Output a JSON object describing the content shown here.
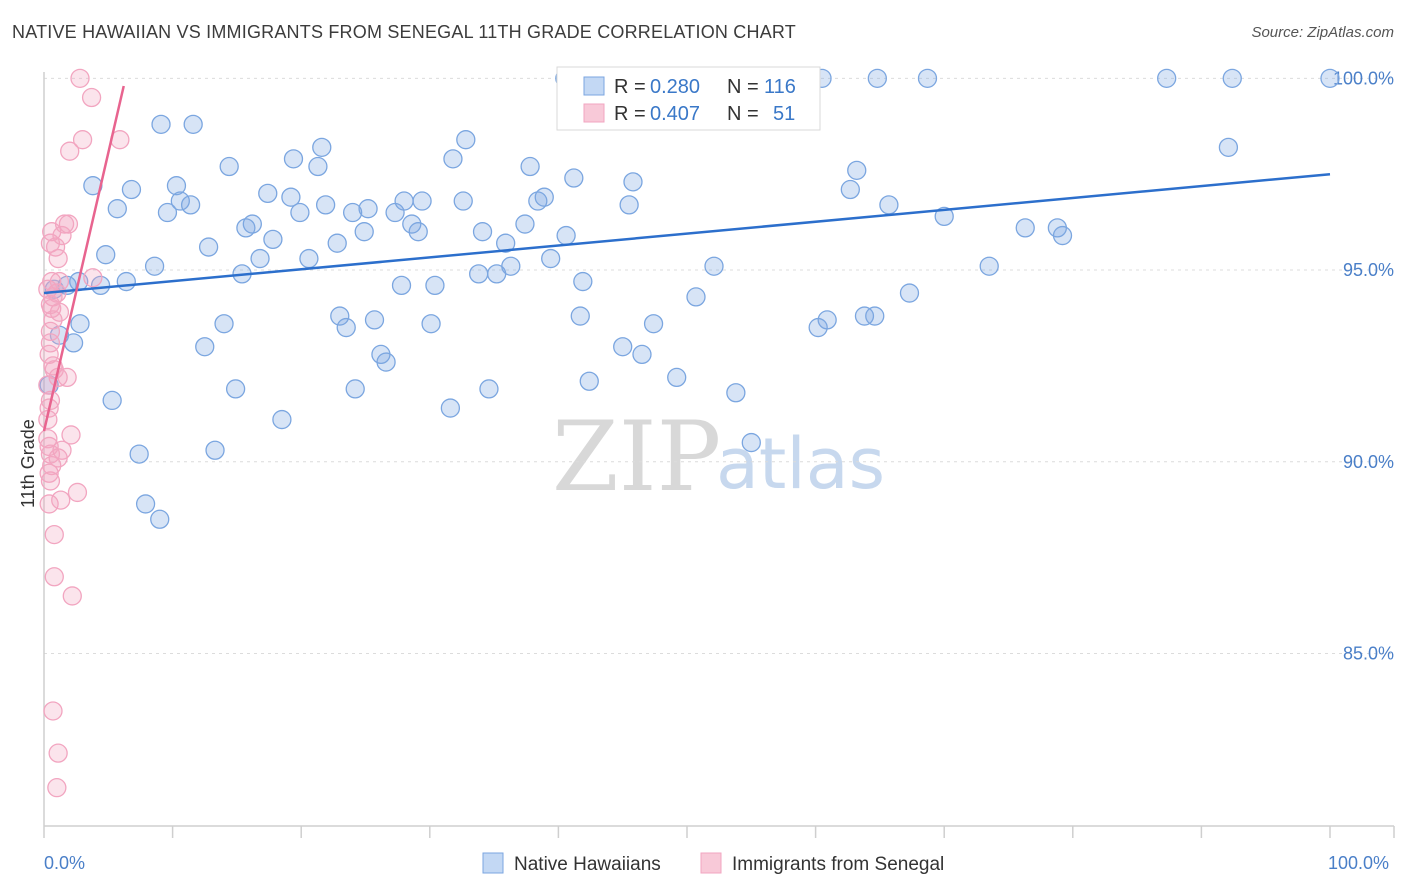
{
  "title": "NATIVE HAWAIIAN VS IMMIGRANTS FROM SENEGAL 11TH GRADE CORRELATION CHART",
  "source": "Source: ZipAtlas.com",
  "watermark": {
    "part1": "ZIP",
    "part2": "atlas"
  },
  "chart_data": {
    "type": "scatter",
    "xlabel": "",
    "ylabel": "11th Grade",
    "xlim": [
      0,
      100
    ],
    "ylim": [
      80.5,
      101
    ],
    "x_tick_labels": [
      "0.0%",
      "100.0%"
    ],
    "y_ticks": [
      85,
      90,
      95,
      100
    ],
    "y_tick_labels": [
      "85.0%",
      "90.0%",
      "95.0%",
      "100.0%"
    ],
    "legend": {
      "r_label": "R =",
      "n_label": "N =",
      "entries": [
        {
          "r": "0.280",
          "n": "116"
        },
        {
          "r": "0.407",
          "n": "51"
        }
      ]
    },
    "series": [
      {
        "name": "Native Hawaiians",
        "color": "#7ba6e0",
        "line_color": "#2c6fcc",
        "trend": [
          [
            0,
            94.4
          ],
          [
            100,
            97.5
          ]
        ],
        "points": [
          [
            0.4,
            92
          ],
          [
            0.8,
            94.5
          ],
          [
            1.2,
            93.3
          ],
          [
            1.8,
            94.6
          ],
          [
            2.3,
            93.1
          ],
          [
            2.8,
            93.6
          ],
          [
            2.7,
            94.7
          ],
          [
            3.8,
            97.2
          ],
          [
            4.4,
            94.6
          ],
          [
            4.8,
            95.4
          ],
          [
            5.3,
            91.6
          ],
          [
            5.7,
            96.6
          ],
          [
            6.4,
            94.7
          ],
          [
            6.8,
            97.1
          ],
          [
            7.4,
            90.2
          ],
          [
            7.9,
            88.9
          ],
          [
            8.6,
            95.1
          ],
          [
            9.0,
            88.5
          ],
          [
            9.1,
            98.8
          ],
          [
            9.6,
            96.5
          ],
          [
            10.3,
            97.2
          ],
          [
            10.6,
            96.8
          ],
          [
            11.4,
            96.7
          ],
          [
            11.6,
            98.8
          ],
          [
            12.5,
            93
          ],
          [
            12.8,
            95.6
          ],
          [
            13.3,
            90.3
          ],
          [
            14.0,
            93.6
          ],
          [
            14.4,
            97.7
          ],
          [
            14.9,
            91.9
          ],
          [
            15.4,
            94.9
          ],
          [
            15.7,
            96.1
          ],
          [
            16.2,
            96.2
          ],
          [
            16.8,
            95.3
          ],
          [
            17.4,
            97
          ],
          [
            17.8,
            95.8
          ],
          [
            18.5,
            91.1
          ],
          [
            19.2,
            96.9
          ],
          [
            19.4,
            97.9
          ],
          [
            19.9,
            96.5
          ],
          [
            20.6,
            95.3
          ],
          [
            21.3,
            97.7
          ],
          [
            21.6,
            98.2
          ],
          [
            21.9,
            96.7
          ],
          [
            22.8,
            95.7
          ],
          [
            23.0,
            93.8
          ],
          [
            23.5,
            93.5
          ],
          [
            24.0,
            96.5
          ],
          [
            24.2,
            91.9
          ],
          [
            24.9,
            96
          ],
          [
            25.2,
            96.6
          ],
          [
            25.7,
            93.7
          ],
          [
            26.2,
            92.8
          ],
          [
            26.6,
            92.6
          ],
          [
            27.3,
            96.5
          ],
          [
            27.8,
            94.6
          ],
          [
            28.0,
            96.8
          ],
          [
            28.6,
            96.2
          ],
          [
            29.1,
            96
          ],
          [
            29.4,
            96.8
          ],
          [
            30.1,
            93.6
          ],
          [
            30.4,
            94.6
          ],
          [
            31.6,
            91.4
          ],
          [
            31.8,
            97.9
          ],
          [
            32.6,
            96.8
          ],
          [
            32.8,
            98.4
          ],
          [
            33.8,
            94.9
          ],
          [
            34.1,
            96
          ],
          [
            34.6,
            91.9
          ],
          [
            35.2,
            94.9
          ],
          [
            35.9,
            95.7
          ],
          [
            36.3,
            95.1
          ],
          [
            37.4,
            96.2
          ],
          [
            37.8,
            97.7
          ],
          [
            38.4,
            96.8
          ],
          [
            38.9,
            96.9
          ],
          [
            39.4,
            95.3
          ],
          [
            40.6,
            95.9
          ],
          [
            41.2,
            97.4
          ],
          [
            41.7,
            93.8
          ],
          [
            41.9,
            94.7
          ],
          [
            42.4,
            92.1
          ],
          [
            45.0,
            93
          ],
          [
            45.5,
            96.7
          ],
          [
            45.8,
            97.3
          ],
          [
            46.5,
            92.8
          ],
          [
            47.4,
            93.6
          ],
          [
            49.2,
            92.2
          ],
          [
            50.7,
            94.3
          ],
          [
            52.1,
            95.1
          ],
          [
            53.8,
            91.8
          ],
          [
            55.0,
            90.5
          ],
          [
            60.2,
            93.5
          ],
          [
            60.9,
            93.7
          ],
          [
            62.7,
            97.1
          ],
          [
            63.2,
            97.6
          ],
          [
            63.8,
            93.8
          ],
          [
            64.6,
            93.8
          ],
          [
            65.7,
            96.7
          ],
          [
            67.3,
            94.4
          ],
          [
            70.0,
            96.4
          ],
          [
            73.5,
            95.1
          ],
          [
            76.3,
            96.1
          ],
          [
            78.8,
            96.1
          ],
          [
            79.2,
            95.9
          ],
          [
            92.1,
            98.2
          ],
          [
            100.0,
            100
          ],
          [
            92.4,
            100
          ],
          [
            87.3,
            100
          ],
          [
            68.7,
            100
          ],
          [
            64.8,
            100
          ],
          [
            60.5,
            100
          ],
          [
            59.4,
            100
          ],
          [
            44.1,
            100
          ],
          [
            40.5,
            100
          ],
          [
            52.0,
            100
          ]
        ]
      },
      {
        "name": "Immigrants from Senegal",
        "color": "#f2a5c0",
        "line_color": "#e8648f",
        "trend": [
          [
            0,
            90.8
          ],
          [
            6.2,
            99.8
          ]
        ],
        "points": [
          [
            2.8,
            100
          ],
          [
            3.7,
            99.5
          ],
          [
            3.0,
            98.4
          ],
          [
            5.9,
            98.4
          ],
          [
            2.0,
            98.1
          ],
          [
            1.6,
            96.2
          ],
          [
            1.9,
            96.2
          ],
          [
            0.6,
            96
          ],
          [
            1.4,
            95.9
          ],
          [
            0.5,
            95.7
          ],
          [
            0.9,
            95.6
          ],
          [
            1.1,
            95.3
          ],
          [
            3.8,
            94.8
          ],
          [
            1.2,
            94.7
          ],
          [
            0.6,
            94.7
          ],
          [
            0.3,
            94.5
          ],
          [
            1.0,
            94.4
          ],
          [
            0.7,
            94.3
          ],
          [
            0.5,
            94.1
          ],
          [
            0.6,
            94
          ],
          [
            1.2,
            93.9
          ],
          [
            0.7,
            93.7
          ],
          [
            0.5,
            93.4
          ],
          [
            0.5,
            93.1
          ],
          [
            0.4,
            92.8
          ],
          [
            0.7,
            92.5
          ],
          [
            0.8,
            92.4
          ],
          [
            1.8,
            92.2
          ],
          [
            1.1,
            92.2
          ],
          [
            0.3,
            92.0
          ],
          [
            0.5,
            91.6
          ],
          [
            0.4,
            91.4
          ],
          [
            0.3,
            91.1
          ],
          [
            2.1,
            90.7
          ],
          [
            0.3,
            90.6
          ],
          [
            0.4,
            90.4
          ],
          [
            1.4,
            90.3
          ],
          [
            0.5,
            90.2
          ],
          [
            1.1,
            90.1
          ],
          [
            0.6,
            89.9
          ],
          [
            0.4,
            89.7
          ],
          [
            0.5,
            89.5
          ],
          [
            2.6,
            89.2
          ],
          [
            1.3,
            89.0
          ],
          [
            0.4,
            88.9
          ],
          [
            0.8,
            88.1
          ],
          [
            0.8,
            87.0
          ],
          [
            2.2,
            86.5
          ],
          [
            0.7,
            83.5
          ],
          [
            1.1,
            82.4
          ],
          [
            1.0,
            81.5
          ]
        ]
      }
    ]
  }
}
